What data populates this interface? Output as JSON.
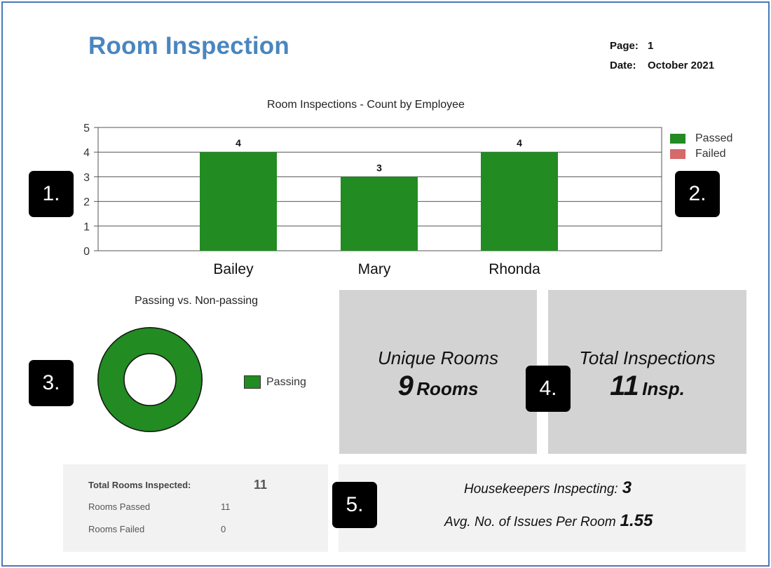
{
  "header": {
    "title": "Room Inspection",
    "page_label": "Page:",
    "page_value": "1",
    "date_label": "Date:",
    "date_value": "October 2021"
  },
  "colors": {
    "passed": "#228b22",
    "failed": "#d46a6a",
    "title": "#4a86bf",
    "kpi_bg": "#d3d3d3"
  },
  "chart_data": [
    {
      "type": "bar",
      "title": "Room Inspections - Count by Employee",
      "categories": [
        "Bailey",
        "Mary",
        "Rhonda"
      ],
      "series": [
        {
          "name": "Passed",
          "values": [
            4,
            3,
            4
          ],
          "color": "#228b22"
        },
        {
          "name": "Failed",
          "values": [
            0,
            0,
            0
          ],
          "color": "#d46a6a"
        }
      ],
      "data_labels": [
        "4",
        "3",
        "4"
      ],
      "ylim": [
        0,
        5
      ],
      "yticks": [
        "0",
        "1",
        "2",
        "3",
        "4",
        "5"
      ],
      "grid": true,
      "legend": "right"
    },
    {
      "type": "pie",
      "title": "Passing vs. Non-passing",
      "slices": [
        {
          "name": "Passing",
          "value": 11,
          "color": "#228b22"
        }
      ],
      "legend": "right"
    }
  ],
  "badges": [
    "1.",
    "2.",
    "3.",
    "4.",
    "5."
  ],
  "kpis": {
    "unique_rooms": {
      "label": "Unique Rooms",
      "value": "9",
      "unit": "Rooms"
    },
    "total_inspections": {
      "label": "Total Inspections",
      "value": "11",
      "unit": "Insp."
    }
  },
  "stats": {
    "total_label": "Total Rooms Inspected:",
    "total_value": "11",
    "passed_label": "Rooms Passed",
    "passed_value": "11",
    "failed_label": "Rooms Failed",
    "failed_value": "0"
  },
  "summary": {
    "housekeepers_label": "Housekeepers Inspecting:",
    "housekeepers_value": "3",
    "avg_issues_label": "Avg. No. of Issues Per Room",
    "avg_issues_value": "1.55"
  }
}
